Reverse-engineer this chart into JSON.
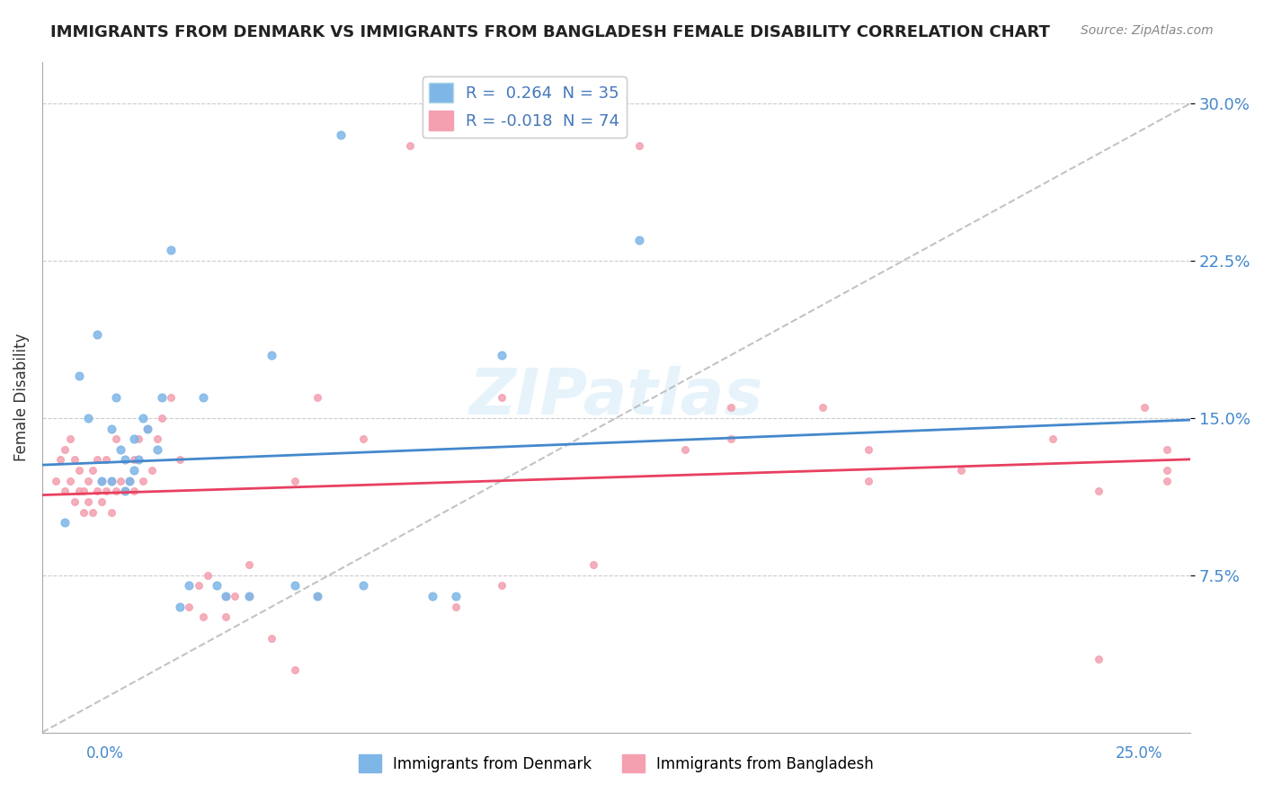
{
  "title": "IMMIGRANTS FROM DENMARK VS IMMIGRANTS FROM BANGLADESH FEMALE DISABILITY CORRELATION CHART",
  "source": "Source: ZipAtlas.com",
  "ylabel_label": "Female Disability",
  "xlim": [
    0.0,
    0.25
  ],
  "ylim": [
    0.0,
    0.32
  ],
  "legend_r1": "R =  0.264  N = 35",
  "legend_r2": "R = -0.018  N = 74",
  "legend_label1": "Immigrants from Denmark",
  "legend_label2": "Immigrants from Bangladesh",
  "blue_color": "#7EB6E8",
  "pink_color": "#F4A0B0",
  "trend_blue": "#4488CC",
  "trend_pink": "#E84060",
  "trend_gray": "#AAAAAA",
  "watermark": "ZIPatlas",
  "denmark_x": [
    0.005,
    0.008,
    0.01,
    0.012,
    0.013,
    0.015,
    0.015,
    0.016,
    0.017,
    0.018,
    0.018,
    0.019,
    0.02,
    0.02,
    0.021,
    0.022,
    0.023,
    0.025,
    0.026,
    0.028,
    0.03,
    0.032,
    0.035,
    0.038,
    0.04,
    0.045,
    0.05,
    0.055,
    0.06,
    0.065,
    0.07,
    0.085,
    0.09,
    0.1,
    0.13
  ],
  "denmark_y": [
    0.1,
    0.17,
    0.15,
    0.19,
    0.12,
    0.12,
    0.145,
    0.16,
    0.135,
    0.13,
    0.115,
    0.12,
    0.125,
    0.14,
    0.13,
    0.15,
    0.145,
    0.135,
    0.16,
    0.23,
    0.06,
    0.07,
    0.16,
    0.07,
    0.065,
    0.065,
    0.18,
    0.07,
    0.065,
    0.285,
    0.07,
    0.065,
    0.065,
    0.18,
    0.235
  ],
  "bangladesh_x": [
    0.003,
    0.004,
    0.005,
    0.005,
    0.006,
    0.006,
    0.007,
    0.007,
    0.008,
    0.008,
    0.009,
    0.009,
    0.01,
    0.01,
    0.011,
    0.011,
    0.012,
    0.012,
    0.013,
    0.013,
    0.014,
    0.014,
    0.015,
    0.015,
    0.016,
    0.016,
    0.017,
    0.018,
    0.019,
    0.02,
    0.02,
    0.021,
    0.022,
    0.023,
    0.024,
    0.025,
    0.026,
    0.028,
    0.03,
    0.032,
    0.034,
    0.036,
    0.04,
    0.042,
    0.045,
    0.05,
    0.055,
    0.06,
    0.07,
    0.08,
    0.09,
    0.1,
    0.12,
    0.13,
    0.14,
    0.15,
    0.17,
    0.18,
    0.2,
    0.22,
    0.23,
    0.23,
    0.24,
    0.245,
    0.245,
    0.245,
    0.1,
    0.15,
    0.18,
    0.06,
    0.055,
    0.045,
    0.04,
    0.035
  ],
  "bangladesh_y": [
    0.12,
    0.13,
    0.115,
    0.135,
    0.12,
    0.14,
    0.11,
    0.13,
    0.115,
    0.125,
    0.105,
    0.115,
    0.12,
    0.11,
    0.105,
    0.125,
    0.115,
    0.13,
    0.11,
    0.12,
    0.115,
    0.13,
    0.105,
    0.12,
    0.115,
    0.14,
    0.12,
    0.115,
    0.12,
    0.115,
    0.13,
    0.14,
    0.12,
    0.145,
    0.125,
    0.14,
    0.15,
    0.16,
    0.13,
    0.06,
    0.07,
    0.075,
    0.055,
    0.065,
    0.08,
    0.045,
    0.03,
    0.16,
    0.14,
    0.28,
    0.06,
    0.07,
    0.08,
    0.28,
    0.135,
    0.155,
    0.155,
    0.135,
    0.125,
    0.14,
    0.035,
    0.115,
    0.155,
    0.12,
    0.125,
    0.135,
    0.16,
    0.14,
    0.12,
    0.065,
    0.12,
    0.065,
    0.065,
    0.055
  ]
}
